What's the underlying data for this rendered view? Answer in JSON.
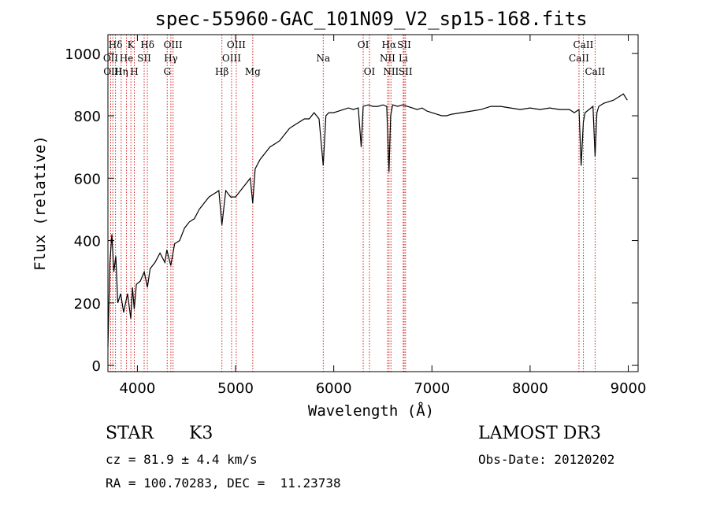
{
  "chart_data": {
    "type": "line",
    "title": "spec-55960-GAC_101N09_V2_sp15-168.fits",
    "xlabel": "Wavelength (Å)",
    "ylabel": "Flux (relative)",
    "xlim": [
      3700,
      9100
    ],
    "ylim": [
      -20,
      1060
    ],
    "xticks": [
      4000,
      5000,
      6000,
      7000,
      8000,
      9000
    ],
    "yticks": [
      0,
      200,
      400,
      600,
      800,
      1000
    ],
    "grid": false,
    "series": [
      {
        "name": "spectrum",
        "color": "#000000",
        "x": [
          3700,
          3720,
          3740,
          3760,
          3780,
          3800,
          3830,
          3860,
          3900,
          3933,
          3950,
          3968,
          3990,
          4030,
          4070,
          4102,
          4130,
          4180,
          4230,
          4280,
          4300,
          4340,
          4380,
          4430,
          4480,
          4530,
          4580,
          4630,
          4680,
          4730,
          4780,
          4830,
          4861,
          4900,
          4950,
          5000,
          5050,
          5100,
          5150,
          5175,
          5200,
          5250,
          5300,
          5350,
          5400,
          5450,
          5500,
          5550,
          5600,
          5650,
          5700,
          5750,
          5800,
          5850,
          5893,
          5920,
          5950,
          6000,
          6050,
          6100,
          6150,
          6200,
          6250,
          6280,
          6300,
          6350,
          6400,
          6450,
          6500,
          6540,
          6563,
          6580,
          6600,
          6650,
          6700,
          6750,
          6800,
          6850,
          6900,
          6950,
          7000,
          7050,
          7100,
          7150,
          7200,
          7300,
          7400,
          7500,
          7600,
          7700,
          7800,
          7900,
          8000,
          8100,
          8200,
          8300,
          8400,
          8450,
          8498,
          8520,
          8542,
          8560,
          8600,
          8640,
          8662,
          8680,
          8700,
          8750,
          8800,
          8850,
          8900,
          8950,
          8990
        ],
        "values": [
          60,
          330,
          420,
          300,
          350,
          200,
          230,
          170,
          230,
          150,
          250,
          180,
          260,
          270,
          300,
          250,
          310,
          330,
          360,
          330,
          370,
          320,
          390,
          400,
          440,
          460,
          470,
          500,
          520,
          540,
          550,
          560,
          450,
          560,
          540,
          540,
          560,
          580,
          600,
          520,
          630,
          660,
          680,
          700,
          710,
          720,
          740,
          760,
          770,
          780,
          790,
          790,
          810,
          790,
          640,
          800,
          810,
          810,
          815,
          820,
          825,
          820,
          825,
          700,
          830,
          835,
          830,
          830,
          835,
          830,
          620,
          800,
          835,
          830,
          835,
          830,
          825,
          820,
          825,
          815,
          810,
          805,
          800,
          800,
          805,
          810,
          815,
          820,
          830,
          830,
          825,
          820,
          825,
          820,
          825,
          820,
          820,
          810,
          820,
          640,
          780,
          810,
          820,
          830,
          670,
          810,
          830,
          840,
          845,
          850,
          860,
          870,
          850
        ]
      }
    ],
    "spectral_lines": [
      {
        "label": "Hδ",
        "wavelength": 3777,
        "row": 1
      },
      {
        "label": "OII",
        "wavelength": 3728,
        "row": 2
      },
      {
        "label": "OIII",
        "wavelength": 3750,
        "row": 3
      },
      {
        "label": "K",
        "wavelength": 3934,
        "row": 1
      },
      {
        "label": "He",
        "wavelength": 3889,
        "row": 2
      },
      {
        "label": "Hη",
        "wavelength": 3835,
        "row": 3
      },
      {
        "label": "SII",
        "wavelength": 4069,
        "row": 2
      },
      {
        "label": "H",
        "wavelength": 3969,
        "row": 3
      },
      {
        "label": "Hδ",
        "wavelength": 4102,
        "row": 1
      },
      {
        "label": "OIII",
        "wavelength": 4363,
        "row": 1
      },
      {
        "label": "Hγ",
        "wavelength": 4341,
        "row": 2
      },
      {
        "label": "G",
        "wavelength": 4304,
        "row": 3
      },
      {
        "label": "OIII",
        "wavelength": 5007,
        "row": 1
      },
      {
        "label": "OIII",
        "wavelength": 4959,
        "row": 2
      },
      {
        "label": "Hβ",
        "wavelength": 4861,
        "row": 3
      },
      {
        "label": "Mg",
        "wavelength": 5175,
        "row": 3
      },
      {
        "label": "Na",
        "wavelength": 5893,
        "row": 2
      },
      {
        "label": "OI",
        "wavelength": 6300,
        "row": 1
      },
      {
        "label": "OI",
        "wavelength": 6364,
        "row": 3
      },
      {
        "label": "Hα",
        "wavelength": 6563,
        "row": 1
      },
      {
        "label": "SII",
        "wavelength": 6717,
        "row": 1
      },
      {
        "label": "NII",
        "wavelength": 6548,
        "row": 2
      },
      {
        "label": "Li",
        "wavelength": 6708,
        "row": 2
      },
      {
        "label": "NII",
        "wavelength": 6583,
        "row": 3
      },
      {
        "label": "SII",
        "wavelength": 6731,
        "row": 3
      },
      {
        "label": "CaII",
        "wavelength": 8542,
        "row": 1
      },
      {
        "label": "CaII",
        "wavelength": 8498,
        "row": 2
      },
      {
        "label": "CaII",
        "wavelength": 8662,
        "row": 3
      }
    ],
    "line_color": "#d02020"
  },
  "info": {
    "class_label": "STAR",
    "subclass": "K3",
    "survey": "LAMOST DR3",
    "redshift": "cz = 81.9 ± 4.4 km/s",
    "obs_date": "Obs-Date: 20120202",
    "coords": "RA = 100.70283, DEC =  11.23738"
  }
}
